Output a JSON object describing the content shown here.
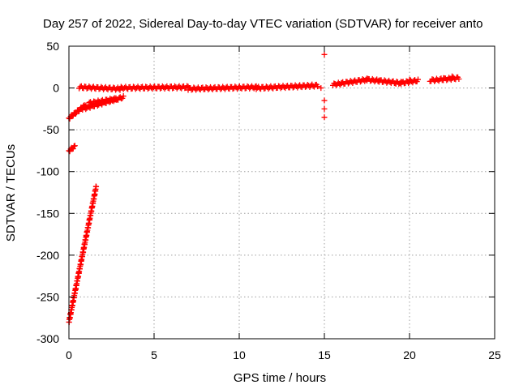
{
  "chart_data": {
    "type": "scatter",
    "title": "Day 257 of 2022, Sidereal Day-to-day VTEC variation (SDTVAR) for receiver anto",
    "xlabel": "GPS time / hours",
    "ylabel": "SDTVAR / TECUs",
    "xlim": [
      0,
      25
    ],
    "ylim": [
      -300,
      50
    ],
    "xticks": [
      0,
      5,
      10,
      15,
      20,
      25
    ],
    "yticks": [
      -300,
      -250,
      -200,
      -150,
      -100,
      -50,
      0,
      50
    ],
    "grid": true,
    "marker": "plus",
    "colors": {
      "series": "#ff0000"
    },
    "series": [
      {
        "segments": [
          {
            "x0": 0.0,
            "x1": 1.6,
            "y0": -280,
            "y1": -118,
            "dense": true
          },
          {
            "x0": 0.0,
            "x1": 0.35,
            "y0": -75,
            "y1": -70,
            "dense": true
          },
          {
            "x0": 0.0,
            "x1": 1.0,
            "y0": -36,
            "y1": -20,
            "dense": true
          },
          {
            "x0": 0.8,
            "x1": 3.2,
            "y0": -25,
            "y1": -11,
            "dense": true
          },
          {
            "x0": 1.2,
            "x1": 2.8,
            "y0": -18,
            "y1": -13,
            "dense": true
          },
          {
            "x0": 0.6,
            "x1": 3.0,
            "y0": 1,
            "y1": -1,
            "dense": true
          },
          {
            "x0": 3.0,
            "x1": 7.0,
            "y0": 0,
            "y1": 1,
            "dense": true
          },
          {
            "x0": 7.0,
            "x1": 11.0,
            "y0": -1,
            "y1": 1,
            "dense": true
          },
          {
            "x0": 11.0,
            "x1": 14.6,
            "y0": 0,
            "y1": 3,
            "dense": true
          },
          {
            "x0": 15.5,
            "x1": 17.5,
            "y0": 4,
            "y1": 10,
            "dense": true
          },
          {
            "x0": 17.5,
            "x1": 19.5,
            "y0": 10,
            "y1": 6,
            "dense": true
          },
          {
            "x0": 19.5,
            "x1": 20.5,
            "y0": 6,
            "y1": 9,
            "dense": true
          },
          {
            "x0": 21.2,
            "x1": 22.9,
            "y0": 9,
            "y1": 12,
            "dense": true
          }
        ],
        "points": [
          [
            15.0,
            40
          ],
          [
            15.0,
            -15
          ],
          [
            15.0,
            -25
          ],
          [
            15.0,
            -35
          ],
          [
            14.6,
            2
          ],
          [
            14.8,
            0
          ],
          [
            16.0,
            6
          ],
          [
            18.2,
            9
          ],
          [
            19.2,
            5
          ],
          [
            20.0,
            10
          ],
          [
            22.0,
            12
          ],
          [
            22.5,
            14
          ]
        ]
      }
    ]
  }
}
